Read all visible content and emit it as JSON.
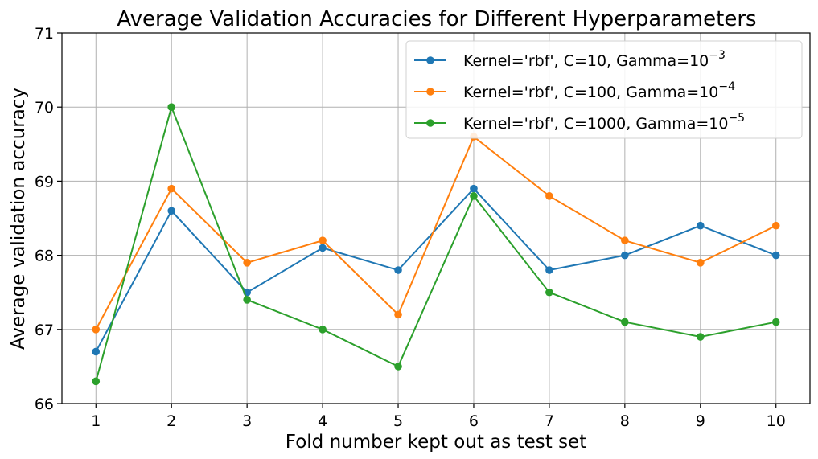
{
  "chart_data": {
    "type": "line",
    "title": "Average Validation Accuracies for Different Hyperparameters",
    "xlabel": "Fold number kept out as test set",
    "ylabel": "Average validation accuracy",
    "x": [
      1,
      2,
      3,
      4,
      5,
      6,
      7,
      8,
      9,
      10
    ],
    "xticks": [
      "1",
      "2",
      "3",
      "4",
      "5",
      "6",
      "7",
      "8",
      "9",
      "10"
    ],
    "xlim": [
      0.55,
      10.45
    ],
    "ylim": [
      66,
      71
    ],
    "yticks": [
      "66",
      "67",
      "68",
      "69",
      "70",
      "71"
    ],
    "grid": true,
    "legend_position": "top-right",
    "series": [
      {
        "name": "Kernel='rbf', C=10, Gamma=10",
        "exponent": "−3",
        "color": "#1f77b4",
        "values": [
          66.7,
          68.6,
          67.5,
          68.1,
          67.8,
          68.9,
          67.8,
          68.0,
          68.4,
          68.0
        ]
      },
      {
        "name": "Kernel='rbf', C=100, Gamma=10",
        "exponent": "−4",
        "color": "#ff7f0e",
        "values": [
          67.0,
          68.9,
          67.9,
          68.2,
          67.2,
          69.6,
          68.8,
          68.2,
          67.9,
          68.4
        ]
      },
      {
        "name": "Kernel='rbf', C=1000, Gamma=10",
        "exponent": "−5",
        "color": "#2ca02c",
        "values": [
          66.3,
          70.0,
          67.4,
          67.0,
          66.5,
          68.8,
          67.5,
          67.1,
          66.9,
          67.1
        ]
      }
    ]
  }
}
